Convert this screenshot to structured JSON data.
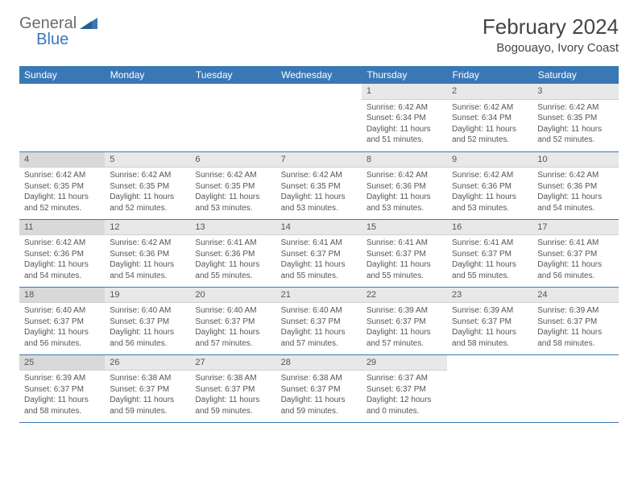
{
  "logo": {
    "word1": "General",
    "word2": "Blue"
  },
  "title": "February 2024",
  "location": "Bogouayo, Ivory Coast",
  "colors": {
    "header_bg": "#3a78b5",
    "header_text": "#ffffff",
    "daynum_bg": "#e8e8e8",
    "daynum_bg_sunday": "#d9d9d9",
    "body_text": "#555555",
    "logo_gray": "#6b6b6b",
    "logo_blue": "#3a78b5",
    "title_color": "#444444",
    "border": "#3a78b5"
  },
  "typography": {
    "title_fontsize": 26,
    "location_fontsize": 15,
    "dayheader_fontsize": 12,
    "daynum_fontsize": 11,
    "body_fontsize": 10
  },
  "day_headers": [
    "Sunday",
    "Monday",
    "Tuesday",
    "Wednesday",
    "Thursday",
    "Friday",
    "Saturday"
  ],
  "weeks": [
    [
      null,
      null,
      null,
      null,
      {
        "n": "1",
        "sunrise": "Sunrise: 6:42 AM",
        "sunset": "Sunset: 6:34 PM",
        "daylight": "Daylight: 11 hours and 51 minutes."
      },
      {
        "n": "2",
        "sunrise": "Sunrise: 6:42 AM",
        "sunset": "Sunset: 6:34 PM",
        "daylight": "Daylight: 11 hours and 52 minutes."
      },
      {
        "n": "3",
        "sunrise": "Sunrise: 6:42 AM",
        "sunset": "Sunset: 6:35 PM",
        "daylight": "Daylight: 11 hours and 52 minutes."
      }
    ],
    [
      {
        "n": "4",
        "sunrise": "Sunrise: 6:42 AM",
        "sunset": "Sunset: 6:35 PM",
        "daylight": "Daylight: 11 hours and 52 minutes."
      },
      {
        "n": "5",
        "sunrise": "Sunrise: 6:42 AM",
        "sunset": "Sunset: 6:35 PM",
        "daylight": "Daylight: 11 hours and 52 minutes."
      },
      {
        "n": "6",
        "sunrise": "Sunrise: 6:42 AM",
        "sunset": "Sunset: 6:35 PM",
        "daylight": "Daylight: 11 hours and 53 minutes."
      },
      {
        "n": "7",
        "sunrise": "Sunrise: 6:42 AM",
        "sunset": "Sunset: 6:35 PM",
        "daylight": "Daylight: 11 hours and 53 minutes."
      },
      {
        "n": "8",
        "sunrise": "Sunrise: 6:42 AM",
        "sunset": "Sunset: 6:36 PM",
        "daylight": "Daylight: 11 hours and 53 minutes."
      },
      {
        "n": "9",
        "sunrise": "Sunrise: 6:42 AM",
        "sunset": "Sunset: 6:36 PM",
        "daylight": "Daylight: 11 hours and 53 minutes."
      },
      {
        "n": "10",
        "sunrise": "Sunrise: 6:42 AM",
        "sunset": "Sunset: 6:36 PM",
        "daylight": "Daylight: 11 hours and 54 minutes."
      }
    ],
    [
      {
        "n": "11",
        "sunrise": "Sunrise: 6:42 AM",
        "sunset": "Sunset: 6:36 PM",
        "daylight": "Daylight: 11 hours and 54 minutes."
      },
      {
        "n": "12",
        "sunrise": "Sunrise: 6:42 AM",
        "sunset": "Sunset: 6:36 PM",
        "daylight": "Daylight: 11 hours and 54 minutes."
      },
      {
        "n": "13",
        "sunrise": "Sunrise: 6:41 AM",
        "sunset": "Sunset: 6:36 PM",
        "daylight": "Daylight: 11 hours and 55 minutes."
      },
      {
        "n": "14",
        "sunrise": "Sunrise: 6:41 AM",
        "sunset": "Sunset: 6:37 PM",
        "daylight": "Daylight: 11 hours and 55 minutes."
      },
      {
        "n": "15",
        "sunrise": "Sunrise: 6:41 AM",
        "sunset": "Sunset: 6:37 PM",
        "daylight": "Daylight: 11 hours and 55 minutes."
      },
      {
        "n": "16",
        "sunrise": "Sunrise: 6:41 AM",
        "sunset": "Sunset: 6:37 PM",
        "daylight": "Daylight: 11 hours and 55 minutes."
      },
      {
        "n": "17",
        "sunrise": "Sunrise: 6:41 AM",
        "sunset": "Sunset: 6:37 PM",
        "daylight": "Daylight: 11 hours and 56 minutes."
      }
    ],
    [
      {
        "n": "18",
        "sunrise": "Sunrise: 6:40 AM",
        "sunset": "Sunset: 6:37 PM",
        "daylight": "Daylight: 11 hours and 56 minutes."
      },
      {
        "n": "19",
        "sunrise": "Sunrise: 6:40 AM",
        "sunset": "Sunset: 6:37 PM",
        "daylight": "Daylight: 11 hours and 56 minutes."
      },
      {
        "n": "20",
        "sunrise": "Sunrise: 6:40 AM",
        "sunset": "Sunset: 6:37 PM",
        "daylight": "Daylight: 11 hours and 57 minutes."
      },
      {
        "n": "21",
        "sunrise": "Sunrise: 6:40 AM",
        "sunset": "Sunset: 6:37 PM",
        "daylight": "Daylight: 11 hours and 57 minutes."
      },
      {
        "n": "22",
        "sunrise": "Sunrise: 6:39 AM",
        "sunset": "Sunset: 6:37 PM",
        "daylight": "Daylight: 11 hours and 57 minutes."
      },
      {
        "n": "23",
        "sunrise": "Sunrise: 6:39 AM",
        "sunset": "Sunset: 6:37 PM",
        "daylight": "Daylight: 11 hours and 58 minutes."
      },
      {
        "n": "24",
        "sunrise": "Sunrise: 6:39 AM",
        "sunset": "Sunset: 6:37 PM",
        "daylight": "Daylight: 11 hours and 58 minutes."
      }
    ],
    [
      {
        "n": "25",
        "sunrise": "Sunrise: 6:39 AM",
        "sunset": "Sunset: 6:37 PM",
        "daylight": "Daylight: 11 hours and 58 minutes."
      },
      {
        "n": "26",
        "sunrise": "Sunrise: 6:38 AM",
        "sunset": "Sunset: 6:37 PM",
        "daylight": "Daylight: 11 hours and 59 minutes."
      },
      {
        "n": "27",
        "sunrise": "Sunrise: 6:38 AM",
        "sunset": "Sunset: 6:37 PM",
        "daylight": "Daylight: 11 hours and 59 minutes."
      },
      {
        "n": "28",
        "sunrise": "Sunrise: 6:38 AM",
        "sunset": "Sunset: 6:37 PM",
        "daylight": "Daylight: 11 hours and 59 minutes."
      },
      {
        "n": "29",
        "sunrise": "Sunrise: 6:37 AM",
        "sunset": "Sunset: 6:37 PM",
        "daylight": "Daylight: 12 hours and 0 minutes."
      },
      null,
      null
    ]
  ]
}
